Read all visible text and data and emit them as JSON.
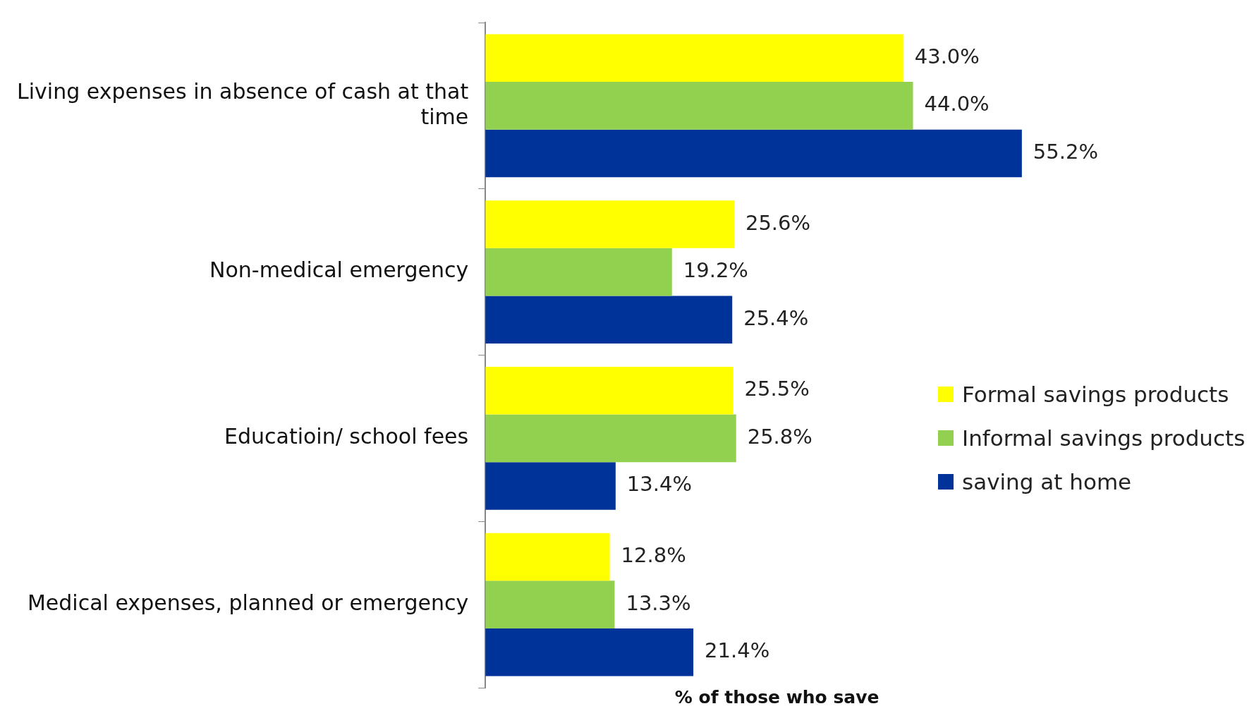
{
  "chart_data": {
    "type": "bar",
    "orientation": "horizontal",
    "xlabel": "% of those who save",
    "categories": [
      "Living expenses in absence of cash at that time",
      "Non-medical emergency",
      "Educatioin/ school fees",
      "Medical expenses, planned or emergency"
    ],
    "series": [
      {
        "name": "Formal savings products",
        "color": "#ffff00",
        "values": [
          43.0,
          25.6,
          25.5,
          12.8
        ],
        "value_labels": [
          "43.0%",
          "25.6%",
          "25.5%",
          "12.8%"
        ]
      },
      {
        "name": "Informal savings products",
        "color": "#92d050",
        "values": [
          44.0,
          19.2,
          25.8,
          13.3
        ],
        "value_labels": [
          "44.0%",
          "19.2%",
          "25.8%",
          "13.3%"
        ]
      },
      {
        "name": "saving at home",
        "color": "#003399",
        "values": [
          55.2,
          25.4,
          13.4,
          21.4
        ],
        "value_labels": [
          "55.2%",
          "25.4%",
          "13.4%",
          "21.4%"
        ]
      }
    ],
    "tick_labels": "y",
    "grid": false,
    "legend": "right"
  }
}
